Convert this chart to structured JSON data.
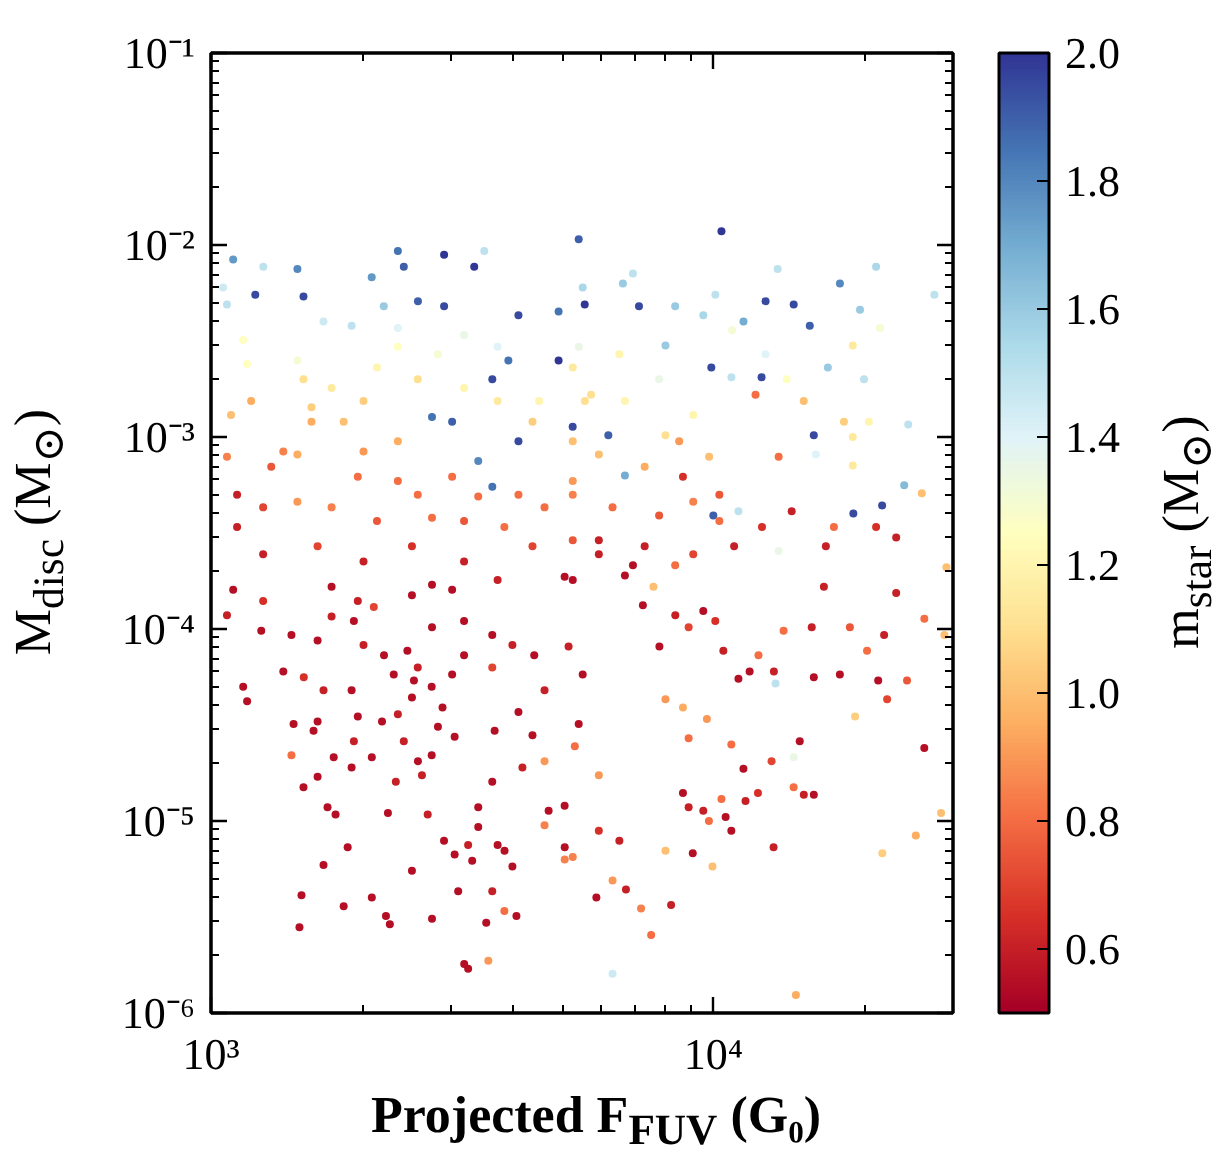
{
  "chart_data": {
    "type": "scatter",
    "xlabel": "Projected F$_{FUV}$ (G₀)",
    "ylabel": "M$_{disc}$ (M$_{⊙}$)",
    "clabel": "m$_{star}$ (M$_{⊙}$)",
    "log": "xy",
    "xlim": [
      1000,
      30000
    ],
    "ylim": [
      1e-06,
      0.1
    ],
    "xticks": [
      {
        "value": 1000,
        "label": "10³"
      },
      {
        "value": 10000,
        "label": "10⁴"
      }
    ],
    "yticks": [
      {
        "value": 1e-06,
        "label": "10⁻⁶"
      },
      {
        "value": 1e-05,
        "label": "10⁻⁵"
      },
      {
        "value": 0.0001,
        "label": "10⁻⁴"
      },
      {
        "value": 0.001,
        "label": "10⁻³"
      },
      {
        "value": 0.01,
        "label": "10⁻²"
      },
      {
        "value": 0.1,
        "label": "10⁻¹"
      }
    ],
    "clim": [
      0.5,
      2
    ],
    "cticks": [
      0.6,
      0.8,
      {
        "value": 1,
        "label": "1.0"
      },
      1.2,
      1.4,
      1.6,
      1.8,
      {
        "value": 2,
        "label": "2.0"
      }
    ],
    "marker": "circle",
    "x": [
      1107,
      1271,
      1225,
      1486,
      1528,
      2089,
      2355,
      2420,
      3499,
      3342,
      2911,
      2911,
      2582,
      2208,
      1905,
      1675,
      4093,
      4920,
      5495,
      4920,
      3908,
      3631,
      3020,
      2754,
      4093,
      3404,
      3631,
      5395,
      10380,
      6918,
      6607,
      5546,
      7112,
      8395,
      10093,
      12706,
      14454,
      13428,
      17865,
      21086,
      19588,
      21478,
      27542,
      15560,
      11482,
      9908,
      12474,
      10864,
      16904,
      19953,
      24434,
      15849,
      12134,
      15136,
      18197,
      18950,
      20400,
      16000,
      18950,
      23988,
      21677,
      19000,
      17378,
      21086,
      23121,
      16750,
      26000,
      29107,
      14322,
      13490,
      10000,
      11220,
      13490,
      12500,
      11000,
      8551,
      9808,
      8700,
      10280,
      6918,
      8395,
      7600,
      5058,
      5916,
      6180,
      5248,
      6668,
      16600,
      23121,
      26303,
      28840,
      21878,
      20230,
      18700,
      15850,
      17860,
      21290,
      24300,
      22180,
      19150,
      26300,
      28400,
      25300,
      21700,
      14600,
      6300,
      7520,
      7180,
      8240,
      5850,
      6300,
      6700,
      9100,
      9960,
      10860,
      13180,
      8030,
      6500,
      5916,
      5060,
      5060,
      9800,
      10580,
      11590,
      15850,
      15140,
      14450,
      12270,
      10380,
      9550,
      8700,
      8930,
      8030,
      8930,
      10860,
      13060,
      14450,
      11480,
      9710,
      11810,
      14860,
      13300,
      13200,
      11220,
      12300,
      13800,
      15700,
      10470,
      10090,
      9550,
      8930,
      8400,
      7240,
      7810,
      8700,
      1514,
      1500,
      1837,
      2090,
      2270,
      2230,
      2512,
      2754,
      3192,
      3250,
      3565,
      3531,
      3630,
      3837,
      4055,
      3105,
      3311,
      1871,
      1675,
      1706,
      1770,
      1528,
      1630,
      1446,
      1600,
      1905,
      2250,
      2333,
      2700,
      2910,
      3055,
      3250,
      3404,
      3720,
      3840,
      3981,
      4613,
      5250,
      5916,
      5058,
      4700,
      4168,
      3630,
      3404,
      2582,
      2420,
      2830,
      3055,
      2090,
      1925,
      1755,
      1630,
      1460,
      1960,
      2190,
      2355,
      2512,
      2535,
      2311,
      2580,
      2460,
      2210,
      2750,
      3020,
      3190,
      2890,
      2750,
      2630,
      1905,
      1675,
      1530,
      1393,
      1159,
      1180,
      1259,
      1076,
      1446,
      1630,
      1738,
      1925,
      2109,
      2012,
      2754,
      3190,
      3630,
      3981,
      4400,
      5150,
      5495,
      4613,
      4093,
      3670,
      4365,
      5395,
      5300,
      4613,
      3630,
      3020,
      2512,
      1960,
      1270,
      1107,
      1960,
      2355,
      2580,
      3020,
      3404,
      4093,
      4613,
      5250,
      2140,
      2754,
      3190,
      3837,
      1738,
      1486,
      1270,
      1127,
      1076,
      1096,
      1202,
      1180,
      1057,
      1076,
      1159,
      1486,
      1528,
      1738,
      1585,
      1585,
      1837,
      2012,
      2140,
      2580,
      2355,
      2830,
      2355,
      3190,
      3720,
      3190,
      3720,
      4500,
      4365,
      2355,
      2012,
      1393,
      1318,
      1486,
      5250,
      5550,
      5250,
      1270,
      1127,
      1630,
      2012,
      2512,
      3190,
      4365,
      5250,
      3720,
      2754,
      1738,
      5250,
      6300,
      7800,
      9120,
      10280,
      7300,
      5916,
      9120,
      6668,
      5250,
      5916,
      7300,
      8030,
      9120,
      6668,
      5710,
      7800,
      6500,
      5400,
      8030,
      9550,
      10900,
      14000,
      12700,
      18950
    ],
    "values": [
      0.0084,
      0.0077,
      0.0055,
      0.0075,
      0.0054,
      0.0068,
      0.0093,
      0.0077,
      0.0093,
      0.0077,
      0.0089,
      0.0048,
      0.0051,
      0.0048,
      0.0038,
      0.004,
      0.0043,
      0.0045,
      0.006,
      0.0025,
      0.0025,
      0.002,
      0.0012,
      0.00127,
      0.00095,
      0.00075,
      0.00055,
      0.0107,
      0.0118,
      0.0071,
      0.0063,
      0.0049,
      0.0048,
      0.0048,
      0.0055,
      0.0051,
      0.0049,
      0.0075,
      0.0063,
      0.0077,
      0.0046,
      0.0037,
      0.0055,
      0.0038,
      0.004,
      0.0023,
      0.00205,
      0.00205,
      0.0023,
      0.002,
      0.00116,
      0.00102,
      0.00166,
      0.00154,
      0.0012,
      0.001,
      0.0012,
      0.00081,
      0.00071,
      0.00056,
      0.00044,
      0.0004,
      0.00034,
      0.00034,
      0.0003,
      0.00027,
      0.00051,
      0.00021,
      0.00041,
      0.00079,
      0.00039,
      0.00041,
      0.000255,
      0.00034,
      0.00027,
      0.00095,
      0.00079,
      0.00062,
      0.0005,
      0.000215,
      0.000215,
      0.000166,
      0.000187,
      0.00029,
      0.00102,
      0.00113,
      0.00063,
      0.000166,
      0.000154,
      0.000113,
      9.3e-05,
      9.3e-05,
      7.7e-05,
      0.000102,
      5.6e-05,
      5.8e-05,
      5.4e-05,
      5.4e-05,
      4.3e-05,
      3.5e-05,
      2.4e-05,
      1.1e-05,
      8.4e-06,
      6.8e-06,
      1.24e-06,
      1.6e-06,
      2.55e-06,
      3.5e-06,
      3.65e-06,
      4e-06,
      4.9e-06,
      4.4e-06,
      6.8e-06,
      5.8e-06,
      8.9e-06,
      7.3e-06,
      7e-06,
      7.9e-06,
      8.9e-06,
      7.3e-06,
      6.3e-06,
      1e-05,
      1.05e-05,
      1.27e-05,
      1.37e-05,
      1.37e-05,
      1.5e-05,
      1.4e-05,
      1.3e-05,
      1.13e-05,
      1.4e-05,
      1.18e-05,
      4.3e-05,
      2.7e-05,
      2.5e-05,
      2.05e-05,
      2.15e-05,
      1.87e-05,
      3.4e-05,
      6e-05,
      2.6e-05,
      5.2e-05,
      6e-05,
      5.5e-05,
      7.3e-05,
      9.8e-05,
      0.000102,
      7.7e-05,
      0.00011,
      0.000124,
      0.000102,
      0.000118,
      0.000133,
      8.1e-05,
      3.9e-05,
      4.1e-06,
      2.8e-06,
      3.6e-06,
      4e-06,
      2.9e-06,
      3.2e-06,
      5.5e-06,
      3.1e-06,
      1.8e-06,
      1.7e-06,
      1.87e-06,
      2.95e-06,
      4.3e-06,
      3.4e-06,
      3.2e-06,
      4.3e-06,
      6.2e-06,
      7.3e-06,
      5.9e-06,
      1.18e-05,
      1.08e-05,
      1.5e-05,
      1.7e-05,
      2.2e-05,
      2.95e-05,
      1.9e-05,
      1.1e-05,
      1.6e-05,
      1.08e-05,
      7.9e-06,
      6.7e-06,
      7.5e-06,
      9.3e-06,
      7.5e-06,
      7e-06,
      5.8e-06,
      9.5e-06,
      6.5e-06,
      1.73e-05,
      1.2e-05,
      1.13e-05,
      1.9e-05,
      1.6e-05,
      1.18e-05,
      2.05e-05,
      2.6e-05,
      3.1e-05,
      2.75e-05,
      2.15e-05,
      2.6e-05,
      2.15e-05,
      3.3e-05,
      3.2e-05,
      3.5e-05,
      3.3e-05,
      3.6e-05,
      4.4e-05,
      5.4e-05,
      5.8e-05,
      6.3e-05,
      7.7e-05,
      7.3e-05,
      5e-05,
      5.8e-05,
      7.3e-05,
      3.9e-05,
      2.2e-05,
      1.73e-05,
      4.8e-05,
      4.8e-05,
      5.6e-05,
      6e-05,
      5e-05,
      4.2e-05,
      9.8e-05,
      0.000118,
      9.3e-05,
      8.7e-05,
      0.000116,
      0.00011,
      0.00013,
      8.25e-05,
      0.000102,
      0.00011,
      9.3e-05,
      8.25e-05,
      7.3e-05,
      8.1e-05,
      5.8e-05,
      4.8e-05,
      3.7e-05,
      2.95e-05,
      2.8e-05,
      3.2e-05,
      2.45e-05,
      2.05e-05,
      6.3e-05,
      0.00016,
      0.00015,
      0.00014,
      0.00014,
      0.00016,
      0.00062,
      0.00059,
      0.0005,
      0.00062,
      0.00049,
      0.0005,
      0.00043,
      0.0005,
      0.000365,
      0.00038,
      0.000365,
      0.00034,
      0.00043,
      0.00046,
      0.00043,
      0.0005,
      0.00079,
      0.0013,
      0.00154,
      0.0024,
      0.006,
      0.0049,
      0.0032,
      0.0025,
      0.002,
      0.0018,
      0.00143,
      0.0012,
      0.0012,
      0.00154,
      0.0023,
      0.002,
      0.00295,
      0.0027,
      0.0037,
      0.0034,
      0.00295,
      0.0018,
      0.00154,
      0.00154,
      0.0012,
      0.00095,
      0.00084,
      0.00084,
      0.0007,
      0.00081,
      0.00095,
      0.00154,
      0.0023,
      0.000245,
      0.00034,
      0.00027,
      0.000225,
      0.00027,
      0.000225,
      0.00027,
      0.00029,
      0.00018,
      0.00017,
      0.000166,
      0.00059,
      0.00043,
      0.00039,
      0.00046,
      0.000365,
      0.00027,
      0.000245,
      0.000245,
      0.00019,
      0.00018,
      0.00081,
      0.0007,
      0.00102,
      0.0013,
      0.00154,
      0.00166,
      0.002,
      0.0027,
      0.00295,
      0.003,
      0.0043,
      0.0036,
      0.002,
      0.0027,
      0.003
    ],
    "cvalues": [
      1.75,
      1.5,
      1.95,
      1.8,
      1.95,
      1.75,
      1.85,
      1.9,
      1.5,
      2.0,
      2.0,
      1.95,
      1.9,
      1.6,
      1.5,
      1.45,
      1.95,
      1.85,
      1.55,
      2.0,
      1.85,
      1.95,
      1.9,
      1.85,
      1.95,
      1.8,
      1.85,
      1.9,
      2.0,
      1.5,
      1.6,
      2.0,
      1.95,
      1.6,
      1.5,
      1.95,
      1.95,
      1.5,
      1.8,
      1.55,
      1.6,
      1.3,
      1.5,
      1.9,
      1.7,
      1.95,
      1.95,
      1.5,
      1.6,
      1.5,
      1.5,
      1.95,
      0.8,
      1.0,
      1.05,
      1.15,
      1.2,
      1.4,
      1.15,
      1.65,
      1.95,
      1.95,
      0.8,
      0.65,
      0.6,
      0.6,
      1.0,
      1.0,
      0.6,
      0.8,
      1.9,
      1.5,
      1.35,
      0.65,
      0.6,
      0.9,
      1.0,
      0.65,
      0.75,
      0.55,
      0.8,
      1.0,
      0.55,
      0.6,
      1.9,
      1.95,
      1.7,
      0.6,
      0.6,
      0.8,
      1.0,
      0.6,
      0.8,
      0.75,
      0.55,
      0.55,
      0.55,
      0.75,
      0.7,
      1.05,
      0.55,
      1.0,
      0.95,
      1.05,
      0.95,
      1.45,
      0.8,
      0.85,
      0.6,
      0.55,
      0.9,
      0.6,
      0.55,
      1.0,
      0.55,
      0.6,
      1.0,
      0.6,
      0.65,
      0.55,
      0.85,
      0.8,
      0.55,
      0.6,
      0.55,
      0.6,
      0.8,
      0.65,
      0.8,
      0.6,
      0.55,
      0.6,
      0.9,
      0.8,
      0.8,
      0.7,
      1.35,
      0.55,
      0.9,
      0.55,
      0.55,
      1.5,
      0.6,
      0.55,
      0.8,
      0.8,
      0.6,
      0.6,
      0.65,
      0.55,
      0.7,
      0.6,
      0.55,
      0.55,
      0.95,
      0.55,
      0.55,
      0.55,
      0.55,
      0.55,
      0.55,
      0.55,
      0.55,
      0.55,
      0.55,
      0.9,
      0.55,
      0.6,
      0.8,
      0.55,
      0.55,
      0.55,
      0.55,
      0.55,
      0.55,
      0.55,
      0.55,
      0.55,
      0.8,
      0.55,
      0.55,
      0.55,
      0.6,
      0.6,
      0.55,
      0.55,
      0.6,
      0.55,
      0.55,
      0.55,
      0.55,
      0.85,
      0.85,
      0.9,
      0.55,
      0.55,
      0.6,
      0.55,
      0.55,
      0.55,
      0.6,
      0.55,
      0.55,
      0.55,
      0.6,
      0.55,
      0.55,
      0.55,
      0.55,
      0.55,
      0.6,
      0.55,
      0.55,
      0.55,
      0.6,
      0.55,
      0.55,
      0.55,
      0.55,
      0.55,
      0.55,
      0.55,
      0.6,
      0.55,
      0.6,
      0.65,
      0.55,
      0.55,
      0.55,
      0.55,
      0.6,
      0.55,
      0.55,
      0.6,
      0.55,
      0.7,
      0.6,
      0.55,
      0.55,
      0.55,
      0.6,
      0.55,
      0.6,
      0.55,
      0.6,
      0.55,
      0.55,
      0.55,
      0.55,
      0.8,
      0.9,
      0.7,
      0.55,
      0.55,
      0.6,
      0.65,
      0.55,
      0.8,
      0.8,
      0.8,
      0.8,
      0.8,
      0.8,
      0.8,
      0.85,
      0.75,
      0.8,
      0.75,
      0.8,
      0.85,
      0.9,
      0.7,
      0.6,
      0.85,
      1.0,
      0.95,
      1.25,
      1.45,
      1.5,
      1.25,
      1.3,
      1.1,
      1.15,
      1.05,
      0.95,
      1.0,
      1.05,
      1.2,
      1.1,
      1.25,
      1.3,
      1.4,
      1.35,
      1.4,
      1.2,
      1.15,
      1.2,
      1.05,
      0.95,
      0.9,
      0.85,
      0.75,
      0.95,
      1.0,
      1.1,
      1.15,
      0.6,
      0.6,
      0.7,
      0.6,
      0.65,
      0.6,
      0.7,
      0.75,
      0.6,
      0.55,
      0.55,
      0.9,
      0.8,
      0.75,
      0.85,
      0.8,
      0.6,
      0.6,
      0.7,
      0.55,
      0.55,
      1.0,
      0.95,
      1.1,
      1.2,
      1.2,
      1.1,
      1.35,
      1.2,
      1.35,
      1.6,
      1.55,
      1.3,
      1.25,
      1.4,
      1.15
    ]
  }
}
